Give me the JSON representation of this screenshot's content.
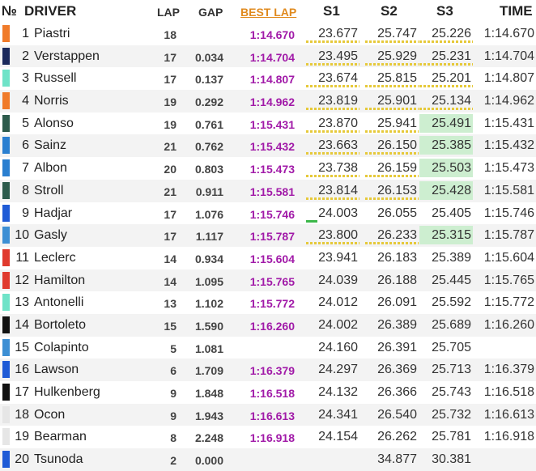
{
  "headers": {
    "no": "№",
    "driver": "DRIVER",
    "lap": "LAP",
    "gap": "GAP",
    "best_lap": "BEST LAP",
    "s1": "S1",
    "s2": "S2",
    "s3": "S3",
    "time": "TIME"
  },
  "colors": {
    "best_lap_header": "#e08a1e",
    "best_lap_value": "#a11aa8",
    "sector_highlight": "#cdeed0",
    "sector_personal_mark": "#e6c93a"
  },
  "rows": [
    {
      "pos": "1",
      "driver": "Piastri",
      "lap": "18",
      "gap": "",
      "best": "1:14.670",
      "s1": "23.677",
      "s2": "25.747",
      "s3": "25.226",
      "time": "1:14.670",
      "team_color": "#f07b2a",
      "s1_style": "y",
      "s2_style": "y",
      "s3_style": "y"
    },
    {
      "pos": "2",
      "driver": "Verstappen",
      "lap": "17",
      "gap": "0.034",
      "best": "1:14.704",
      "s1": "23.495",
      "s2": "25.929",
      "s3": "25.231",
      "time": "1:14.704",
      "team_color": "#1b2a5c",
      "s1_style": "y",
      "s2_style": "y",
      "s3_style": "y"
    },
    {
      "pos": "3",
      "driver": "Russell",
      "lap": "17",
      "gap": "0.137",
      "best": "1:14.807",
      "s1": "23.674",
      "s2": "25.815",
      "s3": "25.201",
      "time": "1:14.807",
      "team_color": "#6fe3c8",
      "s1_style": "y",
      "s2_style": "y",
      "s3_style": "y"
    },
    {
      "pos": "4",
      "driver": "Norris",
      "lap": "19",
      "gap": "0.292",
      "best": "1:14.962",
      "s1": "23.819",
      "s2": "25.901",
      "s3": "25.134",
      "time": "1:14.962",
      "team_color": "#f07b2a",
      "s1_style": "y",
      "s2_style": "y",
      "s3_style": "y"
    },
    {
      "pos": "5",
      "driver": "Alonso",
      "lap": "19",
      "gap": "0.761",
      "best": "1:15.431",
      "s1": "23.870",
      "s2": "25.941",
      "s3": "25.491",
      "time": "1:15.431",
      "team_color": "#2d5b4c",
      "s1_style": "y",
      "s2_style": "y",
      "s3_style": "g"
    },
    {
      "pos": "6",
      "driver": "Sainz",
      "lap": "21",
      "gap": "0.762",
      "best": "1:15.432",
      "s1": "23.663",
      "s2": "26.150",
      "s3": "25.385",
      "time": "1:15.432",
      "team_color": "#2a7fd0",
      "s1_style": "y",
      "s2_style": "y",
      "s3_style": "g"
    },
    {
      "pos": "7",
      "driver": "Albon",
      "lap": "20",
      "gap": "0.803",
      "best": "1:15.473",
      "s1": "23.738",
      "s2": "26.159",
      "s3": "25.503",
      "time": "1:15.473",
      "team_color": "#2a7fd0",
      "s1_style": "y",
      "s2_style": "y",
      "s3_style": "g"
    },
    {
      "pos": "8",
      "driver": "Stroll",
      "lap": "21",
      "gap": "0.911",
      "best": "1:15.581",
      "s1": "23.814",
      "s2": "26.153",
      "s3": "25.428",
      "time": "1:15.581",
      "team_color": "#2d5b4c",
      "s1_style": "y",
      "s2_style": "y",
      "s3_style": "g"
    },
    {
      "pos": "9",
      "driver": "Hadjar",
      "lap": "17",
      "gap": "1.076",
      "best": "1:15.746",
      "s1": "24.003",
      "s2": "26.055",
      "s3": "25.405",
      "time": "1:15.746",
      "team_color": "#1f5bd6",
      "s1_style": "gm",
      "s2_style": "",
      "s3_style": ""
    },
    {
      "pos": "10",
      "driver": "Gasly",
      "lap": "17",
      "gap": "1.117",
      "best": "1:15.787",
      "s1": "23.800",
      "s2": "26.233",
      "s3": "25.315",
      "time": "1:15.787",
      "team_color": "#3d8fd4",
      "s1_style": "y",
      "s2_style": "y",
      "s3_style": "g"
    },
    {
      "pos": "11",
      "driver": "Leclerc",
      "lap": "14",
      "gap": "0.934",
      "best": "1:15.604",
      "s1": "23.941",
      "s2": "26.183",
      "s3": "25.389",
      "time": "1:15.604",
      "team_color": "#e03a2e",
      "s1_style": "",
      "s2_style": "",
      "s3_style": ""
    },
    {
      "pos": "12",
      "driver": "Hamilton",
      "lap": "14",
      "gap": "1.095",
      "best": "1:15.765",
      "s1": "24.039",
      "s2": "26.188",
      "s3": "25.445",
      "time": "1:15.765",
      "team_color": "#e03a2e",
      "s1_style": "",
      "s2_style": "",
      "s3_style": ""
    },
    {
      "pos": "13",
      "driver": "Antonelli",
      "lap": "13",
      "gap": "1.102",
      "best": "1:15.772",
      "s1": "24.012",
      "s2": "26.091",
      "s3": "25.592",
      "time": "1:15.772",
      "team_color": "#6fe3c8",
      "s1_style": "",
      "s2_style": "",
      "s3_style": ""
    },
    {
      "pos": "14",
      "driver": "Bortoleto",
      "lap": "15",
      "gap": "1.590",
      "best": "1:16.260",
      "s1": "24.002",
      "s2": "26.389",
      "s3": "25.689",
      "time": "1:16.260",
      "team_color": "#111111",
      "s1_style": "",
      "s2_style": "",
      "s3_style": ""
    },
    {
      "pos": "15",
      "driver": "Colapinto",
      "lap": "5",
      "gap": "1.081",
      "best": "",
      "s1": "24.160",
      "s2": "26.391",
      "s3": "25.705",
      "time": "",
      "team_color": "#3d8fd4",
      "s1_style": "",
      "s2_style": "",
      "s3_style": ""
    },
    {
      "pos": "16",
      "driver": "Lawson",
      "lap": "6",
      "gap": "1.709",
      "best": "1:16.379",
      "s1": "24.297",
      "s2": "26.369",
      "s3": "25.713",
      "time": "1:16.379",
      "team_color": "#1f5bd6",
      "s1_style": "",
      "s2_style": "",
      "s3_style": ""
    },
    {
      "pos": "17",
      "driver": "Hulkenberg",
      "lap": "9",
      "gap": "1.848",
      "best": "1:16.518",
      "s1": "24.132",
      "s2": "26.366",
      "s3": "25.743",
      "time": "1:16.518",
      "team_color": "#111111",
      "s1_style": "",
      "s2_style": "",
      "s3_style": ""
    },
    {
      "pos": "18",
      "driver": "Ocon",
      "lap": "9",
      "gap": "1.943",
      "best": "1:16.613",
      "s1": "24.341",
      "s2": "26.540",
      "s3": "25.732",
      "time": "1:16.613",
      "team_color": "#e6e6e6",
      "s1_style": "",
      "s2_style": "",
      "s3_style": ""
    },
    {
      "pos": "19",
      "driver": "Bearman",
      "lap": "8",
      "gap": "2.248",
      "best": "1:16.918",
      "s1": "24.154",
      "s2": "26.262",
      "s3": "25.781",
      "time": "1:16.918",
      "team_color": "#e6e6e6",
      "s1_style": "",
      "s2_style": "",
      "s3_style": ""
    },
    {
      "pos": "20",
      "driver": "Tsunoda",
      "lap": "2",
      "gap": "0.000",
      "best": "",
      "s1": "",
      "s2": "34.877",
      "s3": "30.381",
      "time": "",
      "team_color": "#1f5bd6",
      "s1_style": "",
      "s2_style": "",
      "s3_style": ""
    }
  ]
}
